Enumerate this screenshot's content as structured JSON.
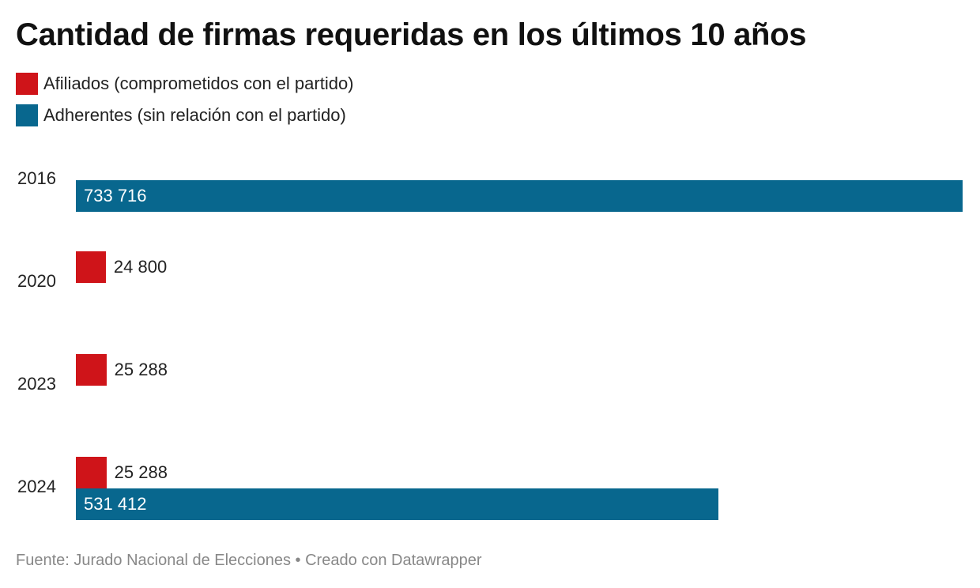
{
  "chart_data": {
    "type": "bar",
    "orientation": "horizontal",
    "title": "Cantidad de firmas requeridas en los últimos 10 años",
    "categories": [
      "2016",
      "2020",
      "2023",
      "2024"
    ],
    "series": [
      {
        "name": "Afiliados (comprometidos con el partido)",
        "color": "#cf1419",
        "values": [
          null,
          24800,
          25288,
          25288
        ],
        "labels": [
          null,
          "24 800",
          "25 288",
          "25 288"
        ]
      },
      {
        "name": "Adherentes (sin relación con el partido)",
        "color": "#08678e",
        "values": [
          733716,
          null,
          null,
          531412
        ],
        "labels": [
          "733 716",
          null,
          null,
          "531 412"
        ]
      }
    ],
    "xlim": [
      0,
      733716
    ],
    "grid": false,
    "legend_position": "top-left"
  },
  "footer": "Fuente: Jurado Nacional de Elecciones • Creado con Datawrapper"
}
